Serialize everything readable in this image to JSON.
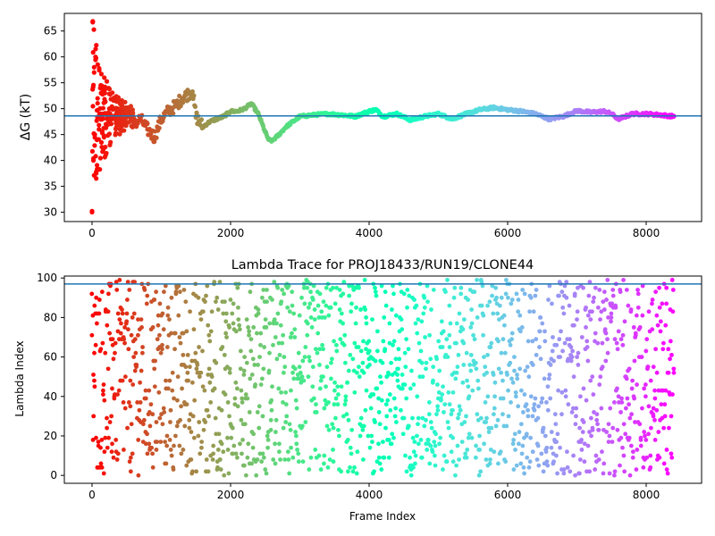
{
  "chart_data": [
    {
      "type": "scatter",
      "title": "",
      "xlabel": "",
      "ylabel": "ΔG (kT)",
      "xlim": [
        -400,
        8800
      ],
      "ylim": [
        28.2,
        68.4
      ],
      "xticks": [
        0,
        2000,
        4000,
        6000,
        8000
      ],
      "xtick_labels": [
        "0",
        "2000",
        "4000",
        "6000",
        "8000"
      ],
      "yticks": [
        30,
        35,
        40,
        45,
        50,
        55,
        60,
        65
      ],
      "ytick_labels": [
        "30",
        "35",
        "40",
        "45",
        "50",
        "55",
        "60",
        "65"
      ],
      "hline": 48.6,
      "grid": false,
      "colormap": "rainbow (red at frame 0 to purple at frame 8400)",
      "x": [
        0,
        10,
        20,
        30,
        40,
        50,
        60,
        80,
        100,
        120,
        150,
        180,
        200,
        250,
        300,
        350,
        400,
        450,
        500,
        600,
        700,
        800,
        900,
        1000,
        1100,
        1200,
        1300,
        1400,
        1450,
        1500,
        1600,
        1700,
        1800,
        1900,
        2000,
        2100,
        2200,
        2300,
        2400,
        2500,
        2550,
        2600,
        2700,
        2800,
        2900,
        3000,
        3200,
        3400,
        3600,
        3800,
        4000,
        4100,
        4200,
        4400,
        4600,
        4800,
        5000,
        5200,
        5400,
        5600,
        5800,
        6000,
        6200,
        6400,
        6600,
        6800,
        7000,
        7200,
        7400,
        7500,
        7600,
        7800,
        8000,
        8200,
        8400
      ],
      "values": [
        30.0,
        66.7,
        40.0,
        58.0,
        45.0,
        60.0,
        37.5,
        52.0,
        46.0,
        54.0,
        48.0,
        53.0,
        47.0,
        50.0,
        48.5,
        49.0,
        47.5,
        48.5,
        49.5,
        47.0,
        48.0,
        46.0,
        44.5,
        48.0,
        49.5,
        50.5,
        52.0,
        53.0,
        53.3,
        48.5,
        46.5,
        47.5,
        48.0,
        48.5,
        49.5,
        49.5,
        50.0,
        51.0,
        49.0,
        45.5,
        44.0,
        43.8,
        45.0,
        46.5,
        47.5,
        48.5,
        48.8,
        49.0,
        48.8,
        48.5,
        49.5,
        49.8,
        48.5,
        49.0,
        47.8,
        48.5,
        49.0,
        48.0,
        49.0,
        49.8,
        50.2,
        49.8,
        49.5,
        49.0,
        48.0,
        48.5,
        49.6,
        49.3,
        49.5,
        49.0,
        48.0,
        49.0,
        49.0,
        48.8,
        48.5
      ]
    },
    {
      "type": "scatter",
      "title": "Lambda Trace for PROJ18433/RUN19/CLONE44",
      "xlabel": "Frame Index",
      "ylabel": "Lambda Index",
      "xlim": [
        -400,
        8800
      ],
      "ylim": [
        -4,
        101
      ],
      "xticks": [
        0,
        2000,
        4000,
        6000,
        8000
      ],
      "xtick_labels": [
        "0",
        "2000",
        "4000",
        "6000",
        "8000"
      ],
      "yticks": [
        0,
        20,
        40,
        60,
        80,
        100
      ],
      "ytick_labels": [
        "0",
        "20",
        "40",
        "60",
        "80",
        "100"
      ],
      "hline": 97,
      "grid": false,
      "colormap": "rainbow (red at frame 0 to purple at frame 8400)",
      "x_range": [
        0,
        8400
      ],
      "y_range": [
        0,
        99
      ],
      "point_count": 840
    }
  ],
  "colors": {
    "hline": "#1f77b4",
    "axes": "#000000",
    "background": "#ffffff"
  }
}
